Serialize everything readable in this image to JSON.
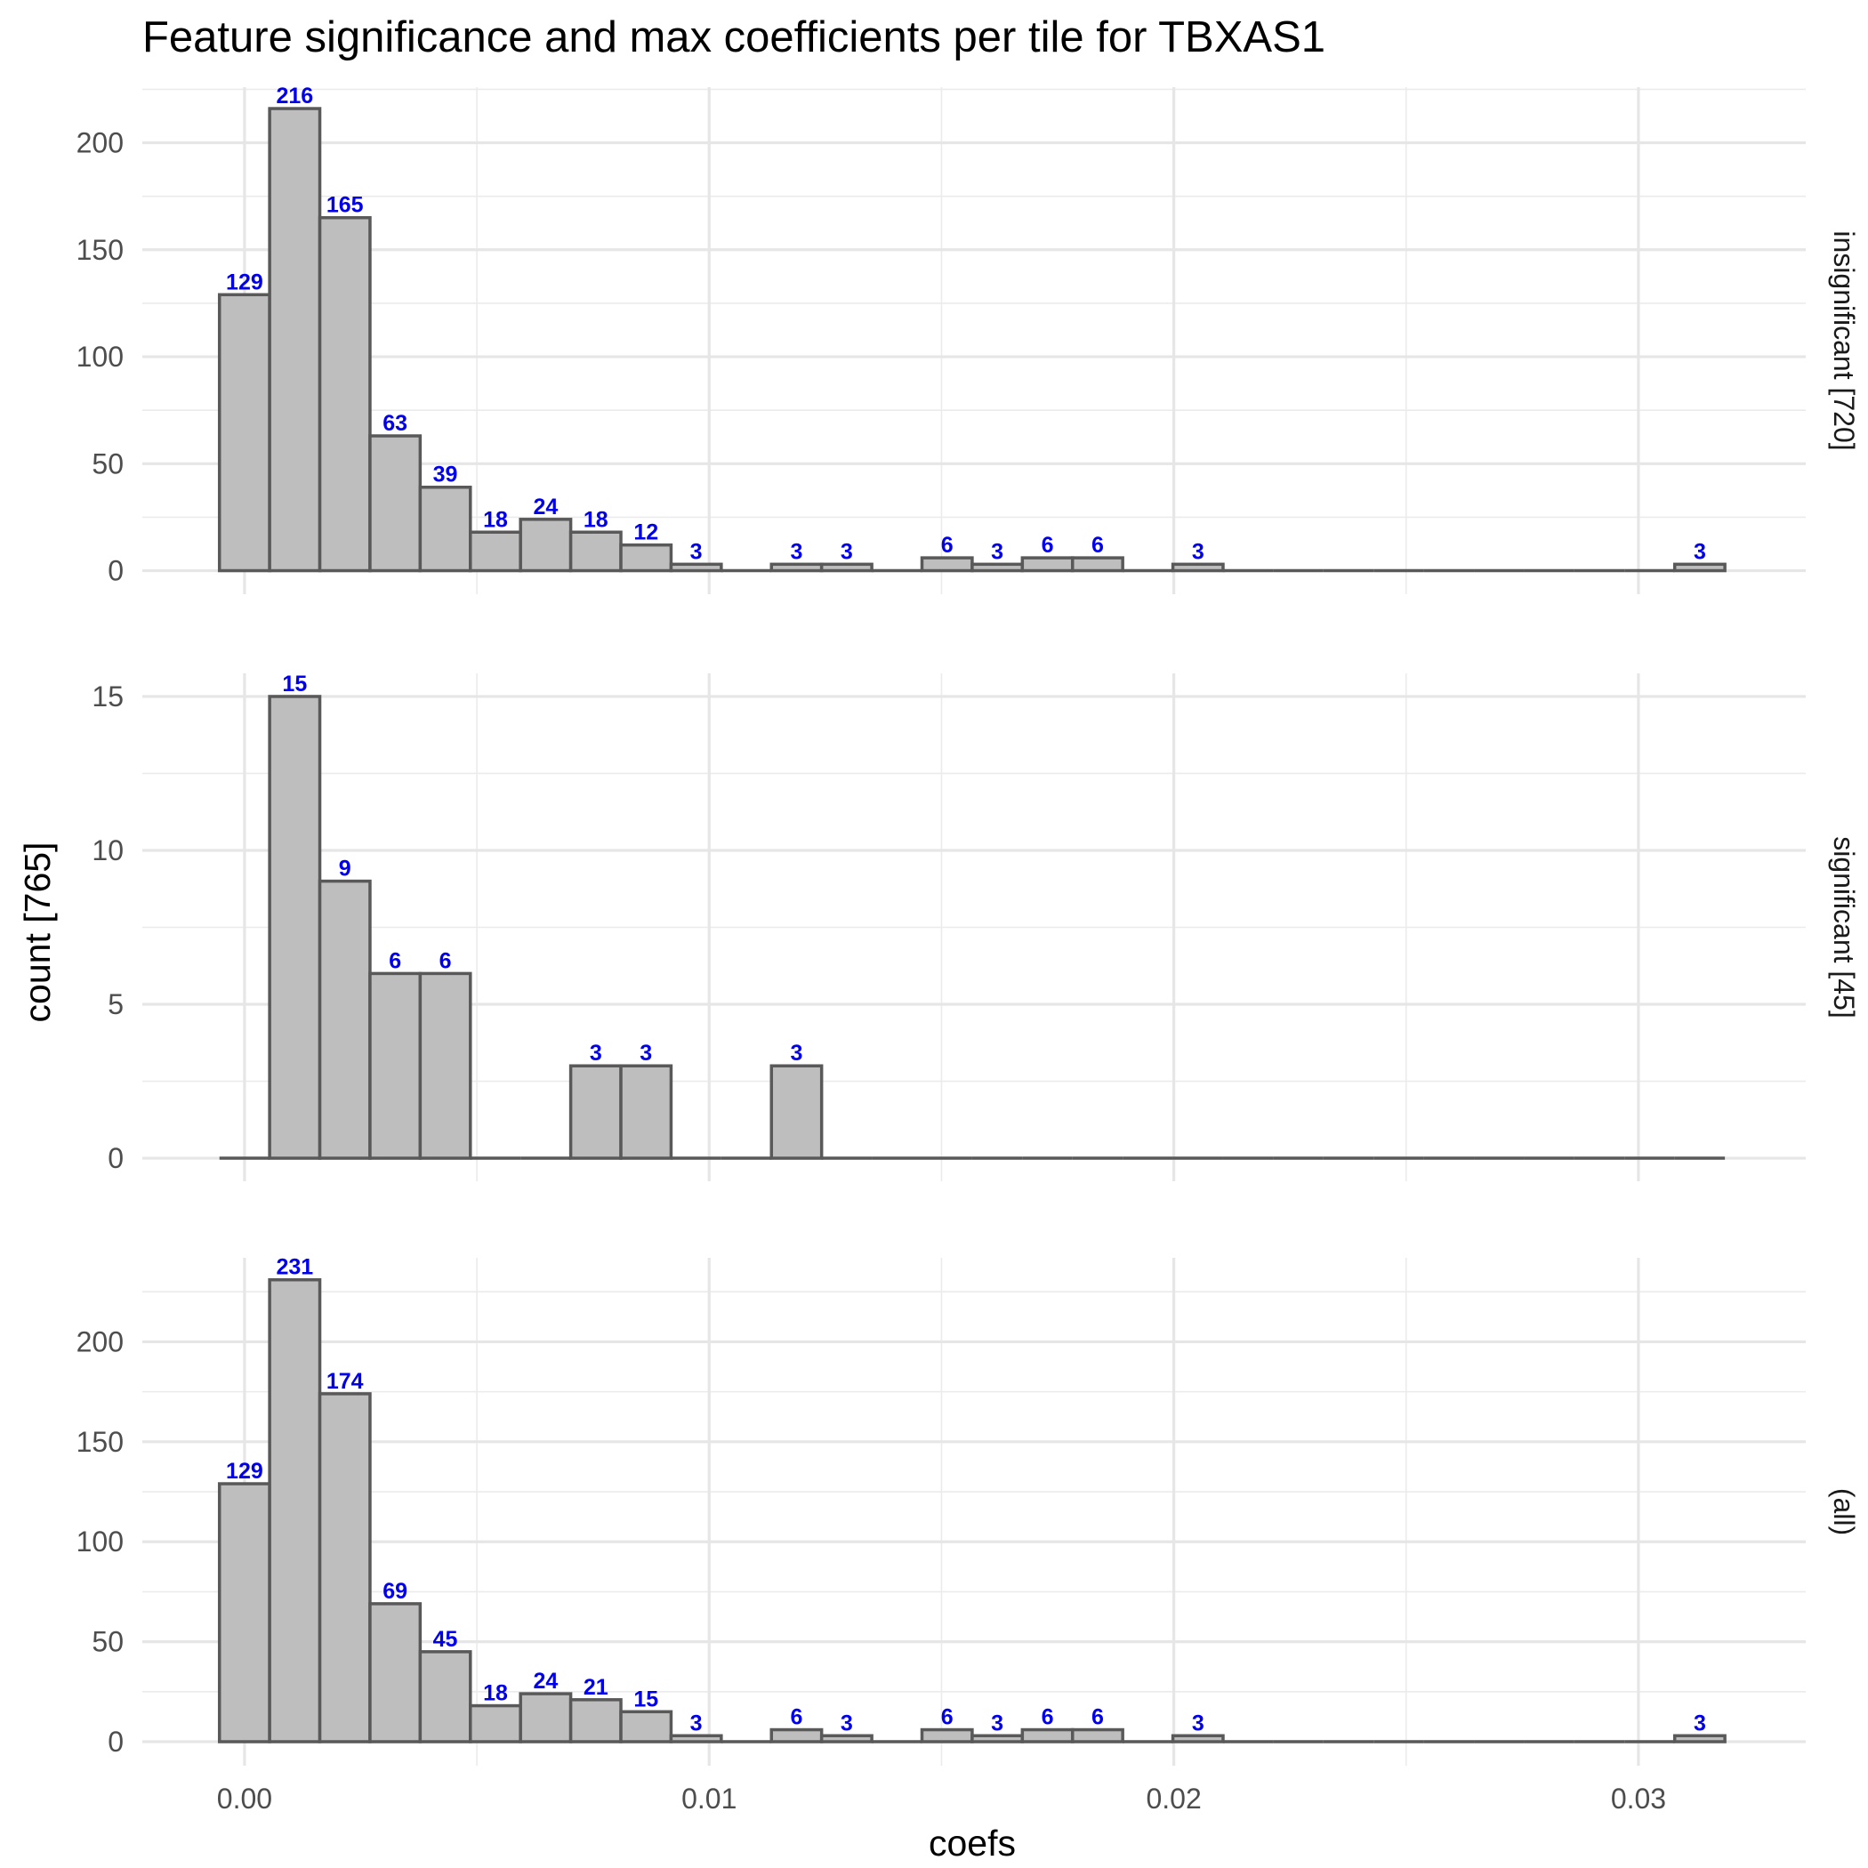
{
  "chart_data": {
    "type": "bar",
    "title": "Feature significance and max coefficients per tile for TBXAS1",
    "xlabel": "coefs",
    "ylabel": "count [765]",
    "bin_width": 0.00108,
    "xlim": [
      -0.0022,
      0.0336
    ],
    "x_ticks": [
      0.0,
      0.01,
      0.02,
      0.03
    ],
    "x_tick_labels": [
      "0.00",
      "0.01",
      "0.02",
      "0.03"
    ],
    "grid": true,
    "bar_fill": "#bebebe",
    "bar_stroke": "#595959",
    "label_color": "#0000ee",
    "facets": [
      {
        "name": "insignificant [720]",
        "ylim": [
          -11,
          226
        ],
        "y_ticks": [
          0,
          50,
          100,
          150,
          200
        ],
        "y_tick_labels": [
          "0",
          "50",
          "100",
          "150",
          "200"
        ],
        "bins_x": [
          0.0,
          0.00108,
          0.00216,
          0.00324,
          0.00432,
          0.0054,
          0.00648,
          0.00756,
          0.00864,
          0.00972,
          0.0108,
          0.01188,
          0.01296,
          0.01404,
          0.01512,
          0.0162,
          0.01728,
          0.01836,
          0.01944,
          0.02052,
          0.0216,
          0.02268,
          0.02376,
          0.02484,
          0.02592,
          0.027,
          0.02808,
          0.02916,
          0.03024,
          0.03132
        ],
        "values": [
          129,
          216,
          165,
          63,
          39,
          18,
          24,
          18,
          12,
          3,
          0,
          3,
          3,
          0,
          6,
          3,
          6,
          6,
          0,
          3,
          0,
          0,
          0,
          0,
          0,
          0,
          0,
          0,
          0,
          3
        ],
        "labels": [
          "129",
          "216",
          "165",
          "63",
          "39",
          "18",
          "24",
          "18",
          "12",
          "3",
          "",
          "3",
          "3",
          "",
          "6",
          "3",
          "6",
          "6",
          "",
          "3",
          "",
          "",
          "",
          "",
          "",
          "",
          "",
          "",
          "",
          "3"
        ]
      },
      {
        "name": "significant [45]",
        "ylim": [
          -0.75,
          15.75
        ],
        "y_ticks": [
          0,
          5,
          10,
          15
        ],
        "y_tick_labels": [
          "0",
          "5",
          "10",
          "15"
        ],
        "bins_x": [
          0.0,
          0.00108,
          0.00216,
          0.00324,
          0.00432,
          0.0054,
          0.00648,
          0.00756,
          0.00864,
          0.00972,
          0.0108,
          0.01188,
          0.01296,
          0.01404,
          0.01512,
          0.0162,
          0.01728,
          0.01836,
          0.01944,
          0.02052,
          0.0216,
          0.02268,
          0.02376,
          0.02484,
          0.02592,
          0.027,
          0.02808,
          0.02916,
          0.03024,
          0.03132
        ],
        "values": [
          0,
          15,
          9,
          6,
          6,
          0,
          0,
          3,
          3,
          0,
          0,
          3,
          0,
          0,
          0,
          0,
          0,
          0,
          0,
          0,
          0,
          0,
          0,
          0,
          0,
          0,
          0,
          0,
          0,
          0
        ],
        "labels": [
          "",
          "15",
          "9",
          "6",
          "6",
          "",
          "",
          "3",
          "3",
          "",
          "",
          "3",
          "",
          "",
          "",
          "",
          "",
          "",
          "",
          "",
          "",
          "",
          "",
          "",
          "",
          "",
          "",
          "",
          "",
          ""
        ]
      },
      {
        "name": "(all)",
        "ylim": [
          -12,
          242
        ],
        "y_ticks": [
          0,
          50,
          100,
          150,
          200
        ],
        "y_tick_labels": [
          "0",
          "50",
          "100",
          "150",
          "200"
        ],
        "bins_x": [
          0.0,
          0.00108,
          0.00216,
          0.00324,
          0.00432,
          0.0054,
          0.00648,
          0.00756,
          0.00864,
          0.00972,
          0.0108,
          0.01188,
          0.01296,
          0.01404,
          0.01512,
          0.0162,
          0.01728,
          0.01836,
          0.01944,
          0.02052,
          0.0216,
          0.02268,
          0.02376,
          0.02484,
          0.02592,
          0.027,
          0.02808,
          0.02916,
          0.03024,
          0.03132
        ],
        "values": [
          129,
          231,
          174,
          69,
          45,
          18,
          24,
          21,
          15,
          3,
          0,
          6,
          3,
          0,
          6,
          3,
          6,
          6,
          0,
          3,
          0,
          0,
          0,
          0,
          0,
          0,
          0,
          0,
          0,
          3
        ],
        "labels": [
          "129",
          "231",
          "174",
          "69",
          "45",
          "18",
          "24",
          "21",
          "15",
          "3",
          "",
          "6",
          "3",
          "",
          "6",
          "3",
          "6",
          "6",
          "",
          "3",
          "",
          "",
          "",
          "",
          "",
          "",
          "",
          "",
          "",
          "3"
        ]
      }
    ]
  }
}
